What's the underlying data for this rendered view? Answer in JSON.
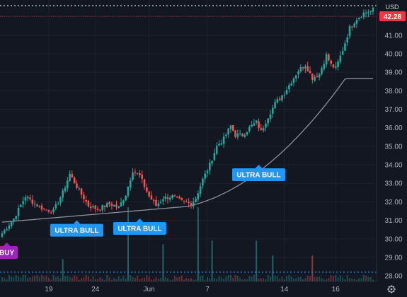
{
  "currency": "USD",
  "last_price_label": "42.28",
  "settings_icon": "gear-icon",
  "colors": {
    "background": "#131722",
    "up": "#26a69a",
    "down": "#ef5350",
    "ma": "#8c8f98",
    "buy": "#9c27b0",
    "bull": "#2196f3",
    "price_tag": "#f23645"
  },
  "chart_data": {
    "type": "candlestick",
    "ylim": [
      27.7,
      42.9
    ],
    "y_ticks": [
      "28.00",
      "29.00",
      "30.00",
      "31.00",
      "32.00",
      "33.00",
      "34.00",
      "35.00",
      "36.00",
      "37.00",
      "38.00",
      "39.00",
      "40.00",
      "41.00",
      "42.00"
    ],
    "x_ticks": [
      {
        "label": "19",
        "index": 20
      },
      {
        "label": "24",
        "index": 40
      },
      {
        "label": "Jun",
        "index": 63
      },
      {
        "label": "7",
        "index": 88
      },
      {
        "label": "14",
        "index": 121
      },
      {
        "label": "16",
        "index": 143
      }
    ],
    "close_anchors": [
      [
        0,
        30.3
      ],
      [
        5,
        31.1
      ],
      [
        10,
        32.3
      ],
      [
        14,
        31.9
      ],
      [
        18,
        31.6
      ],
      [
        22,
        31.5
      ],
      [
        26,
        32.5
      ],
      [
        29,
        33.5
      ],
      [
        33,
        32.6
      ],
      [
        37,
        31.8
      ],
      [
        41,
        31.6
      ],
      [
        46,
        31.9
      ],
      [
        50,
        31.7
      ],
      [
        53,
        32.4
      ],
      [
        56,
        33.7
      ],
      [
        59,
        33.4
      ],
      [
        63,
        32.3
      ],
      [
        66,
        31.8
      ],
      [
        69,
        32.2
      ],
      [
        73,
        32.3
      ],
      [
        77,
        32.0
      ],
      [
        81,
        31.9
      ],
      [
        83,
        32.2
      ],
      [
        86,
        33.2
      ],
      [
        89,
        34.0
      ],
      [
        92,
        35.0
      ],
      [
        95,
        35.4
      ],
      [
        98,
        36.1
      ],
      [
        100,
        35.6
      ],
      [
        103,
        35.6
      ],
      [
        106,
        36.0
      ],
      [
        109,
        36.3
      ],
      [
        111,
        35.8
      ],
      [
        114,
        36.6
      ],
      [
        117,
        37.3
      ],
      [
        121,
        37.9
      ],
      [
        124,
        38.5
      ],
      [
        127,
        39.1
      ],
      [
        130,
        39.4
      ],
      [
        133,
        38.7
      ],
      [
        136,
        38.9
      ],
      [
        139,
        39.9
      ],
      [
        141,
        39.4
      ],
      [
        143,
        39.2
      ],
      [
        146,
        40.2
      ],
      [
        149,
        41.4
      ],
      [
        152,
        41.9
      ],
      [
        155,
        42.2
      ],
      [
        158,
        42.3
      ]
    ],
    "ma_start": 30.9,
    "ma_end": 38.65,
    "volume_spikes": [
      [
        54,
        1.0
      ],
      [
        84,
        1.0
      ],
      [
        90,
        0.55
      ],
      [
        109,
        0.55
      ],
      [
        133,
        0.35
      ],
      [
        26,
        0.3
      ],
      [
        116,
        0.35
      ],
      [
        69,
        0.5
      ]
    ],
    "signals": [
      {
        "label": "BUY",
        "index": 2,
        "y": 29.8,
        "style": "buy",
        "pointer": "up"
      },
      {
        "label": "ULTRA BULL",
        "index": 32,
        "y": 31.0,
        "style": "bull",
        "pointer": "up"
      },
      {
        "label": "ULTRA BULL",
        "index": 59,
        "y": 31.1,
        "style": "bull",
        "pointer": "up"
      },
      {
        "label": "ULTRA BULL",
        "index": 110,
        "y": 34.0,
        "style": "bull",
        "pointer": "up"
      }
    ]
  }
}
